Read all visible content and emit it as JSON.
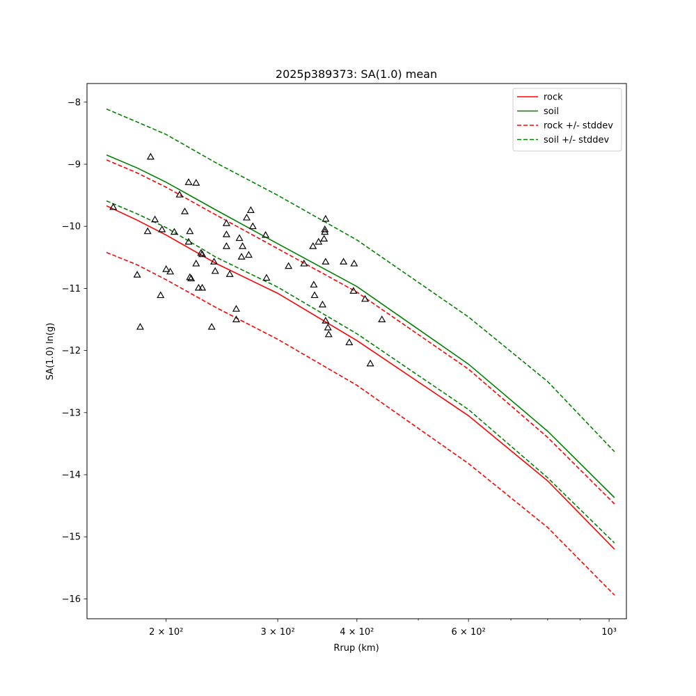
{
  "chart_data": {
    "type": "line",
    "title": "2025p389373: SA(1.0) mean",
    "xlabel": "Rrup (km)",
    "ylabel": "SA(1.0) ln(g)",
    "xscale": "log",
    "xlim": [
      150,
      1065
    ],
    "ylim": [
      -16.32,
      -7.7
    ],
    "grid": false,
    "legend_position": "top-right",
    "x_ticks": [
      {
        "value": 200,
        "label": "2 × 10²"
      },
      {
        "value": 300,
        "label": "3 × 10²"
      },
      {
        "value": 400,
        "label": "4 × 10²"
      },
      {
        "value": 600,
        "label": "6 × 10²"
      },
      {
        "value": 1000,
        "label": "10³"
      }
    ],
    "x_minor_ticks": [
      500,
      700,
      800,
      900
    ],
    "y_ticks": [
      -16,
      -15,
      -14,
      -13,
      -12,
      -11,
      -10,
      -9,
      -8
    ],
    "series": [
      {
        "name": "rock",
        "color": "#ff0000",
        "style": "solid",
        "x": [
          161,
          180,
          200,
          240,
          300,
          400,
          600,
          800,
          1020
        ],
        "y": [
          -9.67,
          -9.9,
          -10.14,
          -10.6,
          -11.08,
          -11.84,
          -13.05,
          -14.1,
          -15.2
        ]
      },
      {
        "name": "soil",
        "color": "#008000",
        "style": "solid",
        "x": [
          161,
          180,
          200,
          240,
          300,
          400,
          600,
          800,
          1020
        ],
        "y": [
          -8.85,
          -9.06,
          -9.29,
          -9.74,
          -10.28,
          -10.97,
          -12.22,
          -13.3,
          -14.37
        ]
      },
      {
        "name": "rock +/- stddev",
        "color": "#ff0000",
        "style": "dashed",
        "x": [
          161,
          180,
          200,
          240,
          300,
          400,
          600,
          800,
          1020
        ],
        "y": [
          -8.93,
          -9.14,
          -9.37,
          -9.82,
          -10.36,
          -11.06,
          -12.3,
          -13.4,
          -14.47
        ]
      },
      {
        "name": "",
        "color": "#ff0000",
        "style": "dashed",
        "x": [
          161,
          180,
          200,
          240,
          300,
          400,
          600,
          800,
          1020
        ],
        "y": [
          -10.42,
          -10.62,
          -10.86,
          -11.31,
          -11.82,
          -12.56,
          -13.82,
          -14.85,
          -15.94
        ]
      },
      {
        "name": "soil +/- stddev",
        "color": "#008000",
        "style": "dashed",
        "x": [
          161,
          180,
          200,
          240,
          300,
          400,
          600,
          800,
          1020
        ],
        "y": [
          -8.11,
          -8.32,
          -8.52,
          -8.98,
          -9.5,
          -10.22,
          -11.46,
          -12.5,
          -13.63
        ]
      },
      {
        "name": "",
        "color": "#008000",
        "style": "dashed",
        "x": [
          161,
          180,
          200,
          240,
          300,
          400,
          600,
          800,
          1020
        ],
        "y": [
          -9.59,
          -9.8,
          -10.02,
          -10.5,
          -10.98,
          -11.73,
          -12.95,
          -14.05,
          -15.1
        ]
      }
    ],
    "observations": {
      "marker": "triangle",
      "color": "#000000",
      "points": [
        [
          165,
          -9.69
        ],
        [
          180,
          -10.78
        ],
        [
          182,
          -11.62
        ],
        [
          187,
          -10.08
        ],
        [
          189,
          -8.88
        ],
        [
          192,
          -9.89
        ],
        [
          196,
          -11.11
        ],
        [
          197,
          -10.05
        ],
        [
          200,
          -10.69
        ],
        [
          203,
          -10.73
        ],
        [
          206,
          -10.09
        ],
        [
          210,
          -9.49
        ],
        [
          214,
          -9.76
        ],
        [
          217,
          -9.29
        ],
        [
          217,
          -10.25
        ],
        [
          218,
          -10.82
        ],
        [
          218,
          -10.08
        ],
        [
          219,
          -10.84
        ],
        [
          223,
          -10.6
        ],
        [
          223,
          -9.3
        ],
        [
          225,
          -10.99
        ],
        [
          227,
          -10.43
        ],
        [
          228,
          -10.99
        ],
        [
          228,
          -10.45
        ],
        [
          236,
          -11.62
        ],
        [
          238,
          -10.57
        ],
        [
          239,
          -10.72
        ],
        [
          249,
          -9.95
        ],
        [
          249,
          -10.13
        ],
        [
          249,
          -10.32
        ],
        [
          252,
          -10.77
        ],
        [
          258,
          -11.33
        ],
        [
          258,
          -11.5
        ],
        [
          261,
          -10.19
        ],
        [
          263,
          -10.49
        ],
        [
          264,
          -10.32
        ],
        [
          268,
          -9.86
        ],
        [
          270,
          -10.46
        ],
        [
          272,
          -9.74
        ],
        [
          274,
          -10.0
        ],
        [
          287,
          -10.14
        ],
        [
          288,
          -10.83
        ],
        [
          312,
          -10.64
        ],
        [
          330,
          -10.6
        ],
        [
          341,
          -10.32
        ],
        [
          342,
          -10.94
        ],
        [
          343,
          -11.11
        ],
        [
          348,
          -10.25
        ],
        [
          353,
          -11.26
        ],
        [
          355,
          -10.2
        ],
        [
          356,
          -10.05
        ],
        [
          356,
          -10.09
        ],
        [
          357,
          -9.88
        ],
        [
          357,
          -10.57
        ],
        [
          357,
          -11.52
        ],
        [
          360,
          -11.63
        ],
        [
          361,
          -11.74
        ],
        [
          381,
          -10.57
        ],
        [
          389,
          -11.87
        ],
        [
          395,
          -11.04
        ],
        [
          396,
          -10.6
        ],
        [
          412,
          -11.17
        ],
        [
          420,
          -12.21
        ],
        [
          438,
          -11.5
        ]
      ]
    }
  }
}
